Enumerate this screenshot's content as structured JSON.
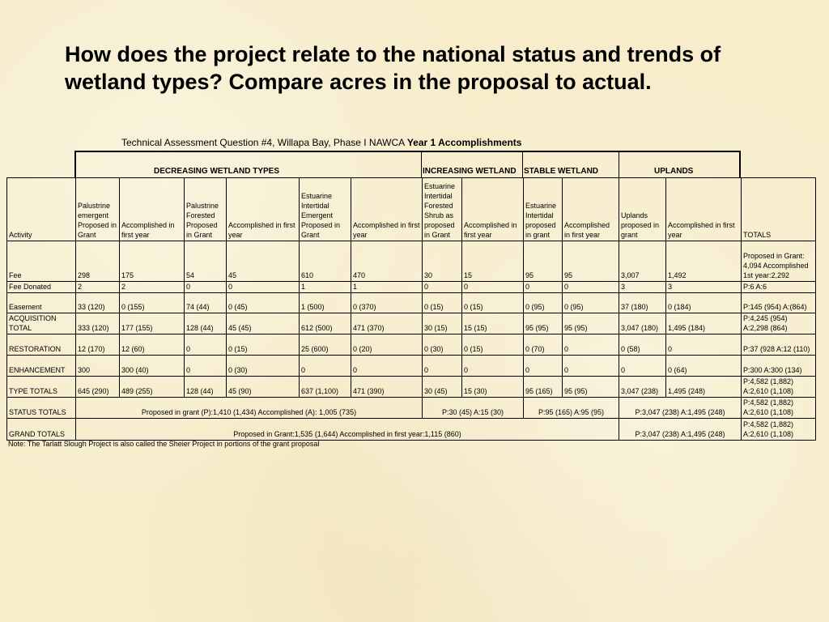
{
  "slide": {
    "title": "How does the project relate to the national status and trends of wetland types? Compare acres in the proposal to actual."
  },
  "caption": {
    "text": "Technical Assessment Question #4, Willapa Bay, Phase I NAWCA",
    "bold": "Year 1 Accomplishments"
  },
  "groups": {
    "decreasing": "DECREASING WETLAND TYPES",
    "increasing": "INCREASING WETLAND",
    "stable": "STABLE WETLAND",
    "uplands": "UPLANDS"
  },
  "columns": [
    "Activity",
    "Palustrine emergent Proposed in Grant",
    "Accomplished in first year",
    "Palustrine Forested Proposed in Grant",
    "Accomplished in first year",
    "Estuarine Intertidal Emergent Proposed in Grant",
    "Accomplished in first year",
    "Estuarine Intertidal Forested Shrub as proposed in Grant",
    "Accomplished in first year",
    "Estuarine Intertidal proposed in grant",
    "Accomplished in first year",
    "Uplands proposed in grant",
    "Accomplished in first year",
    "TOTALS"
  ],
  "rows": {
    "fee": [
      "Fee",
      "298",
      "175",
      "54",
      "45",
      "610",
      "470",
      "30",
      "15",
      "95",
      "95",
      "3,007",
      "1,492",
      "Proposed in Grant: 4,094 Accomplished 1st year:2,292"
    ],
    "fee_donated": [
      "Fee Donated",
      "2",
      "2",
      "0",
      "0",
      "1",
      "1",
      "0",
      "0",
      "0",
      "0",
      "3",
      "3",
      "P:6 A:6"
    ],
    "easement": [
      "Easement",
      "33 (120)",
      "0 (155)",
      "74 (44)",
      "0 (45)",
      "1 (500)",
      "0 (370)",
      "0 (15)",
      "0 (15)",
      "0 (95)",
      "0 (95)",
      "37 (180)",
      "0 (184)",
      "P:145 (954) A:(864)"
    ],
    "acquisition": [
      "ACQUISITION TOTAL",
      "333 (120)",
      "177 (155)",
      "128 (44)",
      "45 (45)",
      "612 (500)",
      "471 (370)",
      "30 (15)",
      "15 (15)",
      "95 (95)",
      "95 (95)",
      "3,047 (180)",
      "1,495 (184)",
      "P:4,245 (954) A:2,298 (864)"
    ],
    "restoration": [
      "RESTORATION",
      "12 (170)",
      "12 (60)",
      "0",
      "0 (15)",
      "25 (600)",
      "0 (20)",
      "0 (30)",
      "0 (15)",
      "0 (70)",
      "0",
      "0 (58)",
      "0",
      "P:37 (928 A:12 (110)"
    ],
    "enhancement": [
      "ENHANCEMENT",
      "300",
      "300 (40)",
      "0",
      "0 (30)",
      "0",
      "0",
      "0",
      "0",
      "0",
      "0",
      "0",
      "0 (64)",
      "P:300 A:300 (134)"
    ],
    "type_totals": [
      "TYPE TOTALS",
      "645 (290)",
      "489 (255)",
      "128 (44)",
      "45 (90)",
      "637 (1,100)",
      "471 (390)",
      "30 (45)",
      "15 (30)",
      "95 (165)",
      "95 (95)",
      "3,047 (238)",
      "1,495 (248)",
      "P:4,582 (1,882) A:2,610 (1,108)"
    ]
  },
  "status_totals": {
    "label": "STATUS TOTALS",
    "decreasing": "Proposed in grant (P):1,410 (1,434) Accomplished (A): 1,005 (735)",
    "increasing": "P:30 (45)  A:15 (30)",
    "stable": "P:95 (165)  A:95 (95)",
    "uplands": "P:3,047 (238)  A:1,495 (248)",
    "total": "P:4,582 (1,882) A:2,610 (1,108)"
  },
  "grand_totals": {
    "label": "GRAND TOTALS",
    "wetlands": "Proposed in Grant:1,535 (1,644)  Accomplished in first year:1,115 (860)",
    "uplands": "P:3,047 (238) A:1,495 (248)",
    "total": "P:4,582 (1,882) A:2,610 (1,108)"
  },
  "note": "Note:  The Tarlatt Slough Project is also called the Sheier Project in portions of the grant proposal"
}
